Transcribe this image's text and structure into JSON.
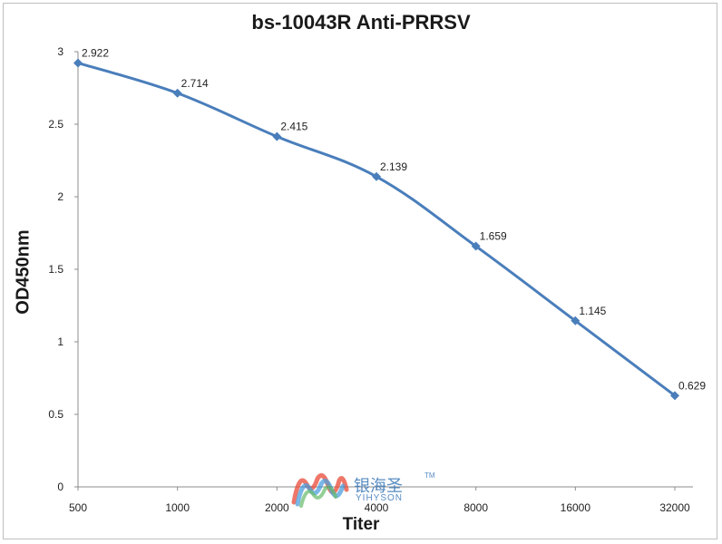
{
  "chart_data": {
    "type": "line",
    "title": "bs-10043R Anti-PRRSV",
    "xlabel": "Titer",
    "ylabel": "OD450nm",
    "categories": [
      "500",
      "1000",
      "2000",
      "4000",
      "8000",
      "16000",
      "32000"
    ],
    "series": [
      {
        "values": [
          2.922,
          2.714,
          2.415,
          2.139,
          1.659,
          1.145,
          0.629
        ],
        "labels": [
          "2.922",
          "2.714",
          "2.415",
          "2.139",
          "1.659",
          "1.145",
          "0.629"
        ],
        "color": "#4a7ebb"
      }
    ],
    "ylim": [
      0,
      3
    ],
    "yticks": [
      "0",
      "0.5",
      "1",
      "1.5",
      "2",
      "2.5",
      "3"
    ],
    "grid": false,
    "legend": "none"
  },
  "watermark": {
    "brand_cn": "银海圣",
    "brand_en": "YIHYSON",
    "trademark": "TM",
    "logo_colors": [
      "#e94e3c",
      "#f2a541",
      "#4caf50",
      "#2f8fd8",
      "#7a4fbf"
    ]
  }
}
